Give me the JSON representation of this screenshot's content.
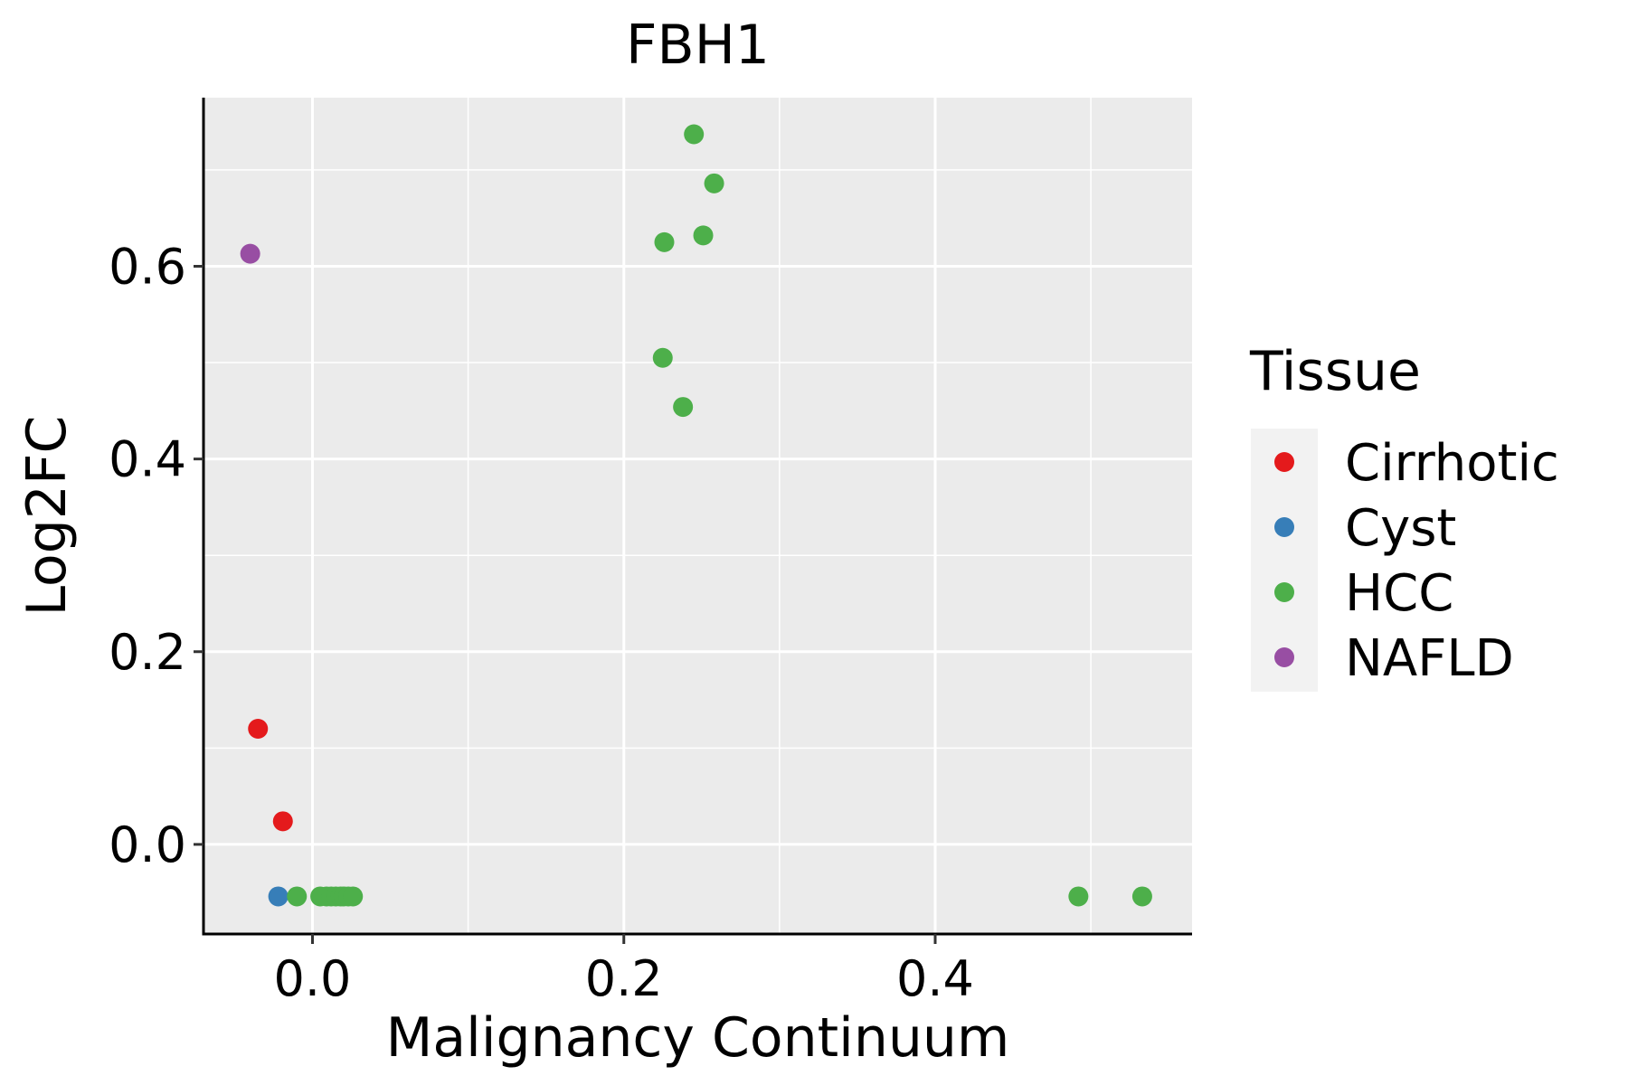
{
  "chart_data": {
    "type": "scatter",
    "title": "FBH1",
    "xlabel": "Malignancy Continuum",
    "ylabel": "Log2FC",
    "xlim": [
      -0.07,
      0.565
    ],
    "ylim": [
      -0.093,
      0.775
    ],
    "x_major_ticks": [
      0.0,
      0.2,
      0.4
    ],
    "x_minor_ticks": [
      0.1,
      0.3,
      0.5
    ],
    "y_major_ticks": [
      0.0,
      0.2,
      0.4,
      0.6
    ],
    "y_minor_ticks": [
      0.1,
      0.3,
      0.5,
      0.7
    ],
    "x_tick_labels": [
      "0.0",
      "0.2",
      "0.4"
    ],
    "y_tick_labels": [
      "0.0",
      "0.2",
      "0.4",
      "0.6"
    ],
    "grid": true,
    "legend": {
      "title": "Tissue",
      "position": "right",
      "entries": [
        "Cirrhotic",
        "Cyst",
        "HCC",
        "NAFLD"
      ]
    },
    "colors": {
      "Cirrhotic": "#E41A1C",
      "Cyst": "#377EB8",
      "HCC": "#4DAF4A",
      "NAFLD": "#984EA3"
    },
    "series": [
      {
        "name": "Cirrhotic",
        "points": [
          [
            -0.035,
            0.12
          ],
          [
            -0.019,
            0.024
          ]
        ]
      },
      {
        "name": "Cyst",
        "points": [
          [
            -0.022,
            -0.054
          ]
        ]
      },
      {
        "name": "HCC",
        "points": [
          [
            -0.01,
            -0.054
          ],
          [
            0.005,
            -0.054
          ],
          [
            0.009,
            -0.054
          ],
          [
            0.012,
            -0.054
          ],
          [
            0.015,
            -0.054
          ],
          [
            0.018,
            -0.054
          ],
          [
            0.02,
            -0.054
          ],
          [
            0.023,
            -0.054
          ],
          [
            0.026,
            -0.054
          ],
          [
            0.245,
            0.737
          ],
          [
            0.258,
            0.686
          ],
          [
            0.251,
            0.632
          ],
          [
            0.226,
            0.625
          ],
          [
            0.225,
            0.505
          ],
          [
            0.238,
            0.454
          ],
          [
            0.492,
            -0.054
          ],
          [
            0.533,
            -0.054
          ]
        ]
      },
      {
        "name": "NAFLD",
        "points": [
          [
            -0.04,
            0.613
          ]
        ]
      }
    ]
  }
}
